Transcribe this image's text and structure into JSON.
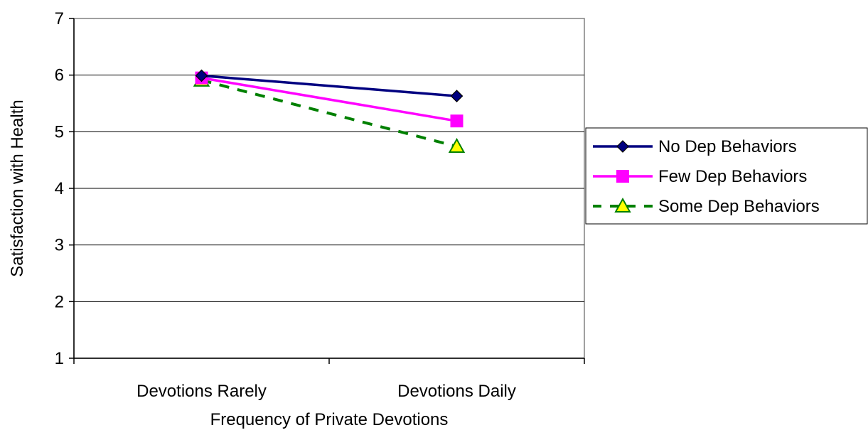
{
  "chart_data": {
    "type": "line",
    "title": "",
    "xlabel": "Frequency of Private Devotions",
    "ylabel": "Satisfaction with Health",
    "categories": [
      "Devotions Rarely",
      "Devotions Daily"
    ],
    "ylim": [
      1,
      7
    ],
    "yticks": [
      "1",
      "2",
      "3",
      "4",
      "5",
      "6",
      "7"
    ],
    "grid": true,
    "legend_position": "right",
    "series": [
      {
        "name": "No Dep Behaviors",
        "values": [
          5.99,
          5.63
        ],
        "color": "#000080",
        "marker": "diamond",
        "dash": "solid"
      },
      {
        "name": "Few Dep Behaviors",
        "values": [
          5.95,
          5.19
        ],
        "color": "#FF00FF",
        "marker": "square",
        "dash": "solid"
      },
      {
        "name": "Some Dep Behaviors",
        "values": [
          5.91,
          4.74
        ],
        "color": "#008000",
        "marker_fill": "#FFFF00",
        "marker": "triangle",
        "dash": "dashed"
      }
    ]
  }
}
